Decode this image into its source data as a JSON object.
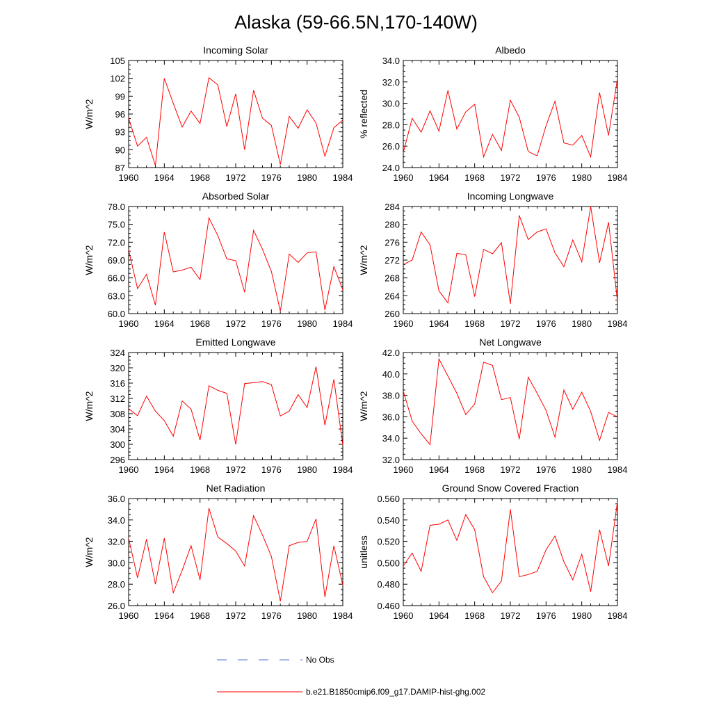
{
  "main_title": "Alaska (59-66.5N,170-140W)",
  "legend": {
    "items": [
      {
        "label": "No Obs",
        "color": "#5a6fd6",
        "dashed": true
      },
      {
        "label": "b.e21.B1850cmip6.f09_g17.DAMIP-hist-ghg.002",
        "color": "#ff0000",
        "dashed": false
      }
    ]
  },
  "chart_data": [
    {
      "type": "line",
      "title": "Incoming Solar",
      "ylabel": "W/m^2",
      "xlim": [
        1960,
        1984
      ],
      "ylim": [
        87,
        105
      ],
      "xticks": [
        1960,
        1964,
        1968,
        1972,
        1976,
        1980,
        1984
      ],
      "yticks": [
        "87",
        "90",
        "93",
        "96",
        "99",
        "102",
        "105"
      ],
      "series": [
        {
          "name": "b.e21.B1850cmip6.f09_g17.DAMIP-hist-ghg.002",
          "color": "#ff0000",
          "x": [
            1960,
            1961,
            1962,
            1963,
            1964,
            1965,
            1966,
            1967,
            1968,
            1969,
            1970,
            1971,
            1972,
            1973,
            1974,
            1975,
            1976,
            1977,
            1978,
            1979,
            1980,
            1981,
            1982,
            1983,
            1984
          ],
          "values": [
            95.3,
            90.6,
            92.1,
            87.3,
            102.0,
            97.8,
            93.8,
            96.5,
            94.4,
            102.1,
            100.9,
            93.9,
            99.4,
            90.0,
            100.0,
            95.3,
            94.1,
            87.5,
            95.6,
            93.6,
            96.7,
            94.5,
            88.9,
            93.7,
            95.0
          ]
        }
      ]
    },
    {
      "type": "line",
      "title": "Albedo",
      "ylabel": "% reflected",
      "xlim": [
        1960,
        1984
      ],
      "ylim": [
        24,
        34
      ],
      "xticks": [
        1960,
        1964,
        1968,
        1972,
        1976,
        1980,
        1984
      ],
      "yticks": [
        "24.0",
        "26.0",
        "28.0",
        "30.0",
        "32.0",
        "34.0"
      ],
      "series": [
        {
          "name": "b.e21.B1850cmip6.f09_g17.DAMIP-hist-ghg.002",
          "color": "#ff0000",
          "x": [
            1960,
            1961,
            1962,
            1963,
            1964,
            1965,
            1966,
            1967,
            1968,
            1969,
            1970,
            1971,
            1972,
            1973,
            1974,
            1975,
            1976,
            1977,
            1978,
            1979,
            1980,
            1981,
            1982,
            1983,
            1984
          ],
          "values": [
            25.4,
            28.6,
            27.3,
            29.3,
            27.4,
            31.2,
            27.6,
            29.2,
            29.9,
            25.0,
            27.1,
            25.6,
            30.3,
            28.7,
            25.5,
            25.1,
            27.9,
            30.2,
            26.3,
            26.1,
            27.0,
            25.0,
            31.0,
            27.0,
            32.3
          ]
        }
      ]
    },
    {
      "type": "line",
      "title": "Absorbed Solar",
      "ylabel": "W/m^2",
      "xlim": [
        1960,
        1984
      ],
      "ylim": [
        60,
        78
      ],
      "xticks": [
        1960,
        1964,
        1968,
        1972,
        1976,
        1980,
        1984
      ],
      "yticks": [
        "60.0",
        "63.0",
        "66.0",
        "69.0",
        "72.0",
        "75.0",
        "78.0"
      ],
      "series": [
        {
          "name": "b.e21.B1850cmip6.f09_g17.DAMIP-hist-ghg.002",
          "color": "#ff0000",
          "x": [
            1960,
            1961,
            1962,
            1963,
            1964,
            1965,
            1966,
            1967,
            1968,
            1969,
            1970,
            1971,
            1972,
            1973,
            1974,
            1975,
            1976,
            1977,
            1978,
            1979,
            1980,
            1981,
            1982,
            1983,
            1984
          ],
          "values": [
            70.7,
            64.2,
            66.6,
            61.4,
            73.7,
            67.0,
            67.3,
            67.8,
            65.7,
            76.1,
            73.1,
            69.2,
            68.9,
            63.6,
            74.0,
            70.8,
            67.1,
            60.4,
            70.0,
            68.6,
            70.2,
            70.4,
            60.6,
            67.9,
            64.0
          ]
        }
      ]
    },
    {
      "type": "line",
      "title": "Incoming Longwave",
      "ylabel": "W/m^2",
      "xlim": [
        1960,
        1984
      ],
      "ylim": [
        260,
        284
      ],
      "xticks": [
        1960,
        1964,
        1968,
        1972,
        1976,
        1980,
        1984
      ],
      "yticks": [
        "260",
        "264",
        "268",
        "272",
        "276",
        "280",
        "284"
      ],
      "series": [
        {
          "name": "b.e21.B1850cmip6.f09_g17.DAMIP-hist-ghg.002",
          "color": "#ff0000",
          "x": [
            1960,
            1961,
            1962,
            1963,
            1964,
            1965,
            1966,
            1967,
            1968,
            1969,
            1970,
            1971,
            1972,
            1973,
            1974,
            1975,
            1976,
            1977,
            1978,
            1979,
            1980,
            1981,
            1982,
            1983,
            1984
          ],
          "values": [
            271.0,
            272.0,
            278.3,
            275.4,
            265.1,
            262.4,
            273.5,
            273.2,
            263.8,
            274.4,
            273.4,
            275.9,
            262.2,
            282.0,
            276.6,
            278.3,
            279.0,
            273.6,
            270.5,
            276.5,
            271.6,
            284.0,
            271.4,
            280.5,
            262.8
          ]
        }
      ]
    },
    {
      "type": "line",
      "title": "Emitted Longwave",
      "ylabel": "W/m^2",
      "xlim": [
        1960,
        1984
      ],
      "ylim": [
        296,
        324
      ],
      "xticks": [
        1960,
        1964,
        1968,
        1972,
        1976,
        1980,
        1984
      ],
      "yticks": [
        "296",
        "300",
        "304",
        "308",
        "312",
        "316",
        "320",
        "324"
      ],
      "series": [
        {
          "name": "b.e21.B1850cmip6.f09_g17.DAMIP-hist-ghg.002",
          "color": "#ff0000",
          "x": [
            1960,
            1961,
            1962,
            1963,
            1964,
            1965,
            1966,
            1967,
            1968,
            1969,
            1970,
            1971,
            1972,
            1973,
            1974,
            1975,
            1976,
            1977,
            1978,
            1979,
            1980,
            1981,
            1982,
            1983,
            1984
          ],
          "values": [
            309.3,
            307.5,
            312.6,
            308.7,
            306.2,
            302.1,
            311.3,
            309.2,
            301.1,
            315.3,
            314.1,
            313.3,
            300.0,
            315.9,
            316.1,
            316.4,
            315.6,
            307.4,
            308.7,
            313.0,
            309.6,
            320.3,
            305.0,
            317.0,
            299.8
          ]
        }
      ]
    },
    {
      "type": "line",
      "title": "Net Longwave",
      "ylabel": "W/m^2",
      "xlim": [
        1960,
        1984
      ],
      "ylim": [
        32,
        42
      ],
      "xticks": [
        1960,
        1964,
        1968,
        1972,
        1976,
        1980,
        1984
      ],
      "yticks": [
        "32.0",
        "34.0",
        "36.0",
        "38.0",
        "40.0",
        "42.0"
      ],
      "series": [
        {
          "name": "b.e21.B1850cmip6.f09_g17.DAMIP-hist-ghg.002",
          "color": "#ff0000",
          "x": [
            1960,
            1961,
            1962,
            1963,
            1964,
            1965,
            1966,
            1967,
            1968,
            1969,
            1970,
            1971,
            1972,
            1973,
            1974,
            1975,
            1976,
            1977,
            1978,
            1979,
            1980,
            1981,
            1982,
            1983,
            1984
          ],
          "values": [
            38.4,
            35.6,
            34.4,
            33.4,
            41.4,
            39.8,
            38.2,
            36.2,
            37.2,
            41.1,
            40.8,
            37.6,
            37.8,
            33.9,
            39.7,
            38.2,
            36.6,
            34.1,
            38.5,
            36.7,
            38.3,
            36.5,
            33.8,
            36.4,
            36.0
          ]
        }
      ]
    },
    {
      "type": "line",
      "title": "Net Radiation",
      "ylabel": "W/m^2",
      "xlim": [
        1960,
        1984
      ],
      "ylim": [
        26,
        36
      ],
      "xticks": [
        1960,
        1964,
        1968,
        1972,
        1976,
        1980,
        1984
      ],
      "yticks": [
        "26.0",
        "28.0",
        "30.0",
        "32.0",
        "34.0",
        "36.0"
      ],
      "series": [
        {
          "name": "b.e21.B1850cmip6.f09_g17.DAMIP-hist-ghg.002",
          "color": "#ff0000",
          "x": [
            1960,
            1961,
            1962,
            1963,
            1964,
            1965,
            1966,
            1967,
            1968,
            1969,
            1970,
            1971,
            1972,
            1973,
            1974,
            1975,
            1976,
            1977,
            1978,
            1979,
            1980,
            1981,
            1982,
            1983,
            1984
          ],
          "values": [
            32.3,
            28.6,
            32.2,
            28.0,
            32.3,
            27.2,
            29.3,
            31.6,
            28.4,
            35.1,
            32.4,
            31.8,
            31.1,
            29.7,
            34.4,
            32.6,
            30.6,
            26.4,
            31.6,
            31.9,
            32.0,
            34.1,
            26.8,
            31.6,
            27.9
          ]
        }
      ]
    },
    {
      "type": "line",
      "title": "Ground Snow Covered Fraction",
      "ylabel": "unitless",
      "xlim": [
        1960,
        1984
      ],
      "ylim": [
        0.46,
        0.56
      ],
      "xticks": [
        1960,
        1964,
        1968,
        1972,
        1976,
        1980,
        1984
      ],
      "yticks": [
        "0.460",
        "0.480",
        "0.500",
        "0.520",
        "0.540",
        "0.560"
      ],
      "series": [
        {
          "name": "b.e21.B1850cmip6.f09_g17.DAMIP-hist-ghg.002",
          "color": "#ff0000",
          "x": [
            1960,
            1961,
            1962,
            1963,
            1964,
            1965,
            1966,
            1967,
            1968,
            1969,
            1970,
            1971,
            1972,
            1973,
            1974,
            1975,
            1976,
            1977,
            1978,
            1979,
            1980,
            1981,
            1982,
            1983,
            1984
          ],
          "values": [
            0.497,
            0.509,
            0.492,
            0.535,
            0.536,
            0.54,
            0.521,
            0.545,
            0.531,
            0.487,
            0.472,
            0.483,
            0.55,
            0.487,
            0.489,
            0.492,
            0.512,
            0.525,
            0.501,
            0.484,
            0.508,
            0.473,
            0.531,
            0.497,
            0.557
          ]
        }
      ]
    }
  ]
}
